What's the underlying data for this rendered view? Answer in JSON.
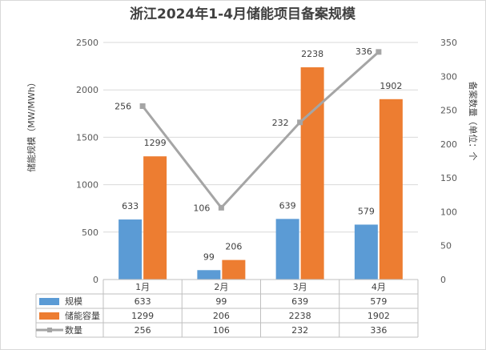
{
  "chart_data": {
    "type": "bar",
    "title": "浙江2024年1-4月储能项目备案规模",
    "categories": [
      "1月",
      "2月",
      "3月",
      "4月"
    ],
    "series": [
      {
        "name": "规模",
        "chart": "bar",
        "axis": "left",
        "color": "#5b9bd5",
        "values": [
          633,
          99,
          639,
          579
        ]
      },
      {
        "name": "储能容量",
        "chart": "bar",
        "axis": "left",
        "color": "#ed7d31",
        "values": [
          1299,
          206,
          2238,
          1902
        ]
      },
      {
        "name": "数量",
        "chart": "line",
        "axis": "right",
        "color": "#a5a5a5",
        "values": [
          256,
          106,
          232,
          336
        ]
      }
    ],
    "ylabel": "储能规模（MW/MWh）",
    "y2label": "备案数量（单位：个",
    "ylim": [
      0,
      2500
    ],
    "yticks": [
      "0",
      "500",
      "1000",
      "1500",
      "2000",
      "2500"
    ],
    "y2lim": [
      0,
      350
    ],
    "y2ticks": [
      "0",
      "50",
      "100",
      "150",
      "200",
      "250",
      "300",
      "350"
    ],
    "grid": true,
    "legend": "data-table"
  }
}
